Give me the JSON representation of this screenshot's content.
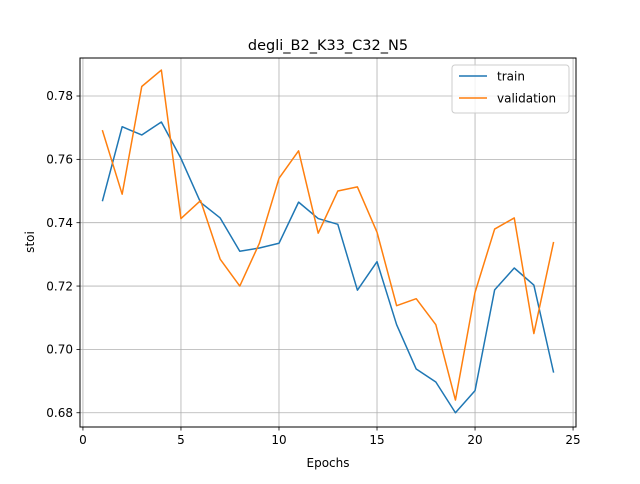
{
  "chart_data": {
    "type": "line",
    "title": "degli_B2_K33_C32_N5",
    "xlabel": "Epochs",
    "ylabel": "stoi",
    "xlim": [
      -0.15,
      25.15
    ],
    "ylim": [
      0.6755,
      0.792
    ],
    "grid": true,
    "legend_position": "top-right",
    "x_ticks": [
      0,
      5,
      10,
      15,
      20,
      25
    ],
    "y_ticks": [
      0.68,
      0.7,
      0.72,
      0.74,
      0.76,
      0.78
    ],
    "x_tick_labels": [
      "0",
      "5",
      "10",
      "15",
      "20",
      "25"
    ],
    "y_tick_labels": [
      "0.68",
      "0.70",
      "0.72",
      "0.74",
      "0.76",
      "0.78"
    ],
    "x": [
      1,
      2,
      3,
      4,
      5,
      6,
      7,
      8,
      9,
      10,
      11,
      12,
      13,
      14,
      15,
      16,
      17,
      18,
      19,
      20,
      21,
      22,
      23,
      24
    ],
    "series": [
      {
        "name": "train",
        "color": "#1f77b4",
        "values": [
          0.747,
          0.7703,
          0.7677,
          0.7718,
          0.7603,
          0.7464,
          0.7415,
          0.731,
          0.732,
          0.7335,
          0.7465,
          0.7413,
          0.7395,
          0.7187,
          0.7277,
          0.7078,
          0.6938,
          0.6897,
          0.68,
          0.687,
          0.7188,
          0.7257,
          0.7203,
          0.6929
        ]
      },
      {
        "name": "validation",
        "color": "#ff7f0e",
        "values": [
          0.769,
          0.749,
          0.783,
          0.7882,
          0.7413,
          0.747,
          0.7285,
          0.72,
          0.7335,
          0.754,
          0.7627,
          0.7367,
          0.75,
          0.7513,
          0.737,
          0.7138,
          0.716,
          0.7078,
          0.684,
          0.718,
          0.738,
          0.7415,
          0.705,
          0.7337
        ]
      }
    ]
  }
}
